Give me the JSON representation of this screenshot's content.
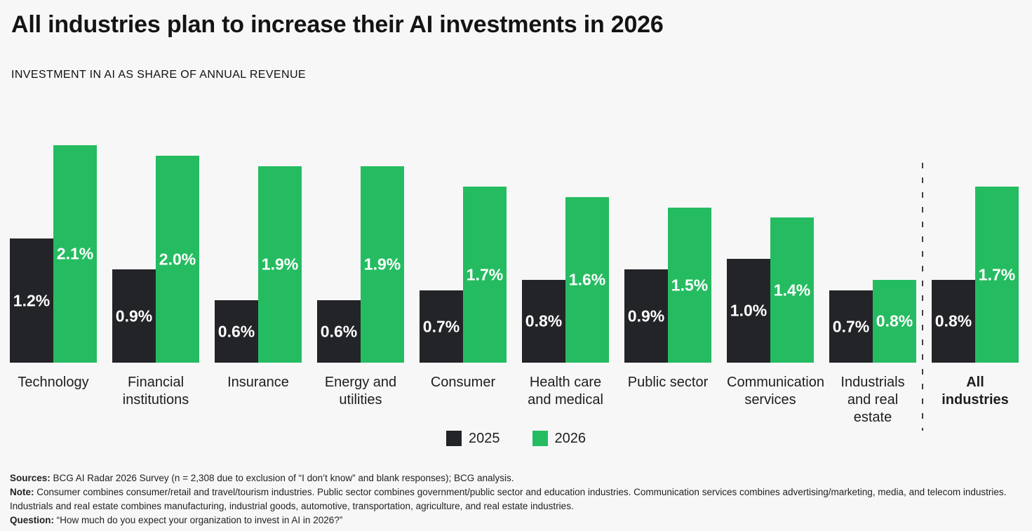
{
  "chart_data": {
    "type": "bar",
    "title": "All industries plan to increase their AI investments in 2026",
    "subtitle": "INVESTMENT IN AI AS SHARE OF ANNUAL REVENUE",
    "categories": [
      "Technology",
      "Financial institutions",
      "Insurance",
      "Energy and utilities",
      "Consumer",
      "Health care and medical",
      "Public sector",
      "Communication services",
      "Industrials and real estate",
      "All industries"
    ],
    "category_display": [
      "Technology",
      "Financial\ninstitutions",
      "Insurance",
      "Energy and\nutilities",
      "Consumer",
      "Health care\nand medical",
      "Public sector",
      "Communication\nservices",
      "Industrials\nand real\nestate",
      "All\nindustries"
    ],
    "emphasis_category_index": 9,
    "series": [
      {
        "name": "2025",
        "color": "#232428",
        "values": [
          1.2,
          0.9,
          0.6,
          0.6,
          0.7,
          0.8,
          0.9,
          1.0,
          0.7,
          0.8
        ]
      },
      {
        "name": "2026",
        "color": "#25bc61",
        "values": [
          2.1,
          2.0,
          1.9,
          1.9,
          1.7,
          1.6,
          1.5,
          1.4,
          0.8,
          1.7
        ]
      }
    ],
    "value_suffix": "%",
    "ylim": [
      0,
      2.1
    ],
    "xlabel": "",
    "ylabel": "",
    "grid": false,
    "legend_position": "bottom-center",
    "separator_before_category": "All industries"
  },
  "footer": {
    "lines": [
      {
        "label": "Sources:",
        "text": " BCG AI Radar 2026 Survey (n = 2,308 due to exclusion of “I don’t know” and blank responses); BCG analysis."
      },
      {
        "label": "Note:",
        "text": " Consumer combines consumer/retail and travel/tourism industries. Public sector combines government/public sector and education industries. Communication services combines advertising/marketing, media, and telecom industries."
      },
      {
        "label": "",
        "text": "Industrials and real estate combines manufacturing, industrial goods, automotive, transportation, agriculture, and real estate industries."
      },
      {
        "label": "Question:",
        "text": " “How much do you expect your organization to invest in AI in 2026?”"
      }
    ]
  }
}
